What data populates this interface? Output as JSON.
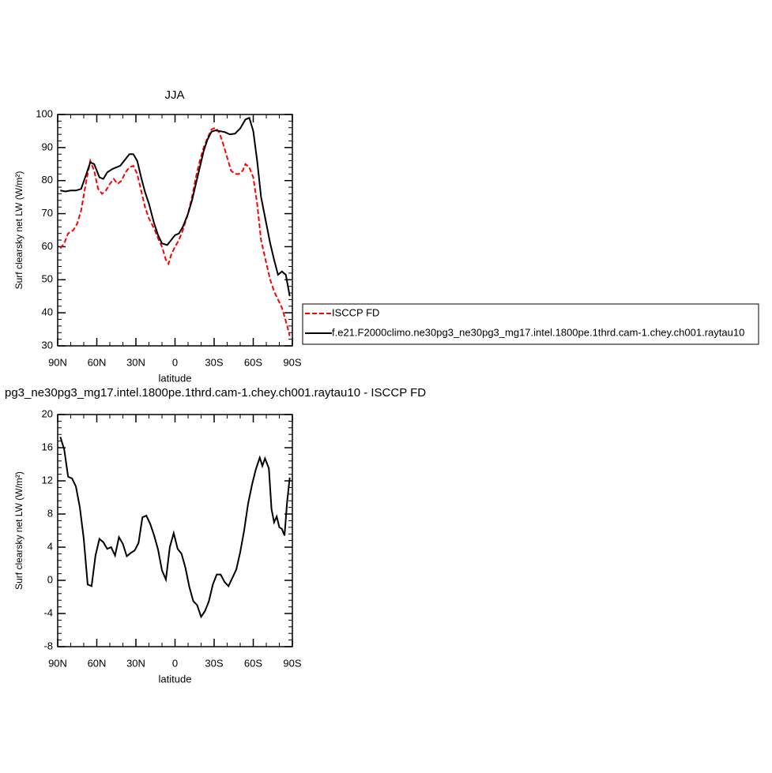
{
  "chart_data": [
    {
      "type": "line",
      "title": "JJA",
      "xlabel": "latitude",
      "ylabel": "Surf clearsky net LW (W/m²)",
      "xlim": [
        90,
        -90
      ],
      "xticks": [
        {
          "value": 90,
          "label": "90N"
        },
        {
          "value": 60,
          "label": "60N"
        },
        {
          "value": 30,
          "label": "30N"
        },
        0,
        {
          "value": -30,
          "label": "30S"
        },
        {
          "value": -60,
          "label": "60S"
        },
        {
          "value": -90,
          "label": "90S"
        }
      ],
      "ylim": [
        30,
        100
      ],
      "yticks": [
        30,
        40,
        50,
        60,
        70,
        80,
        90,
        100
      ],
      "legend": "right",
      "series": [
        {
          "name": "ISCCP FD",
          "color": "#ff0000",
          "style": "dashed",
          "x": [
            88,
            85,
            82,
            78,
            75,
            72,
            68,
            65,
            62,
            59,
            56,
            53,
            50,
            47,
            44,
            41,
            38,
            35,
            32,
            29,
            26,
            23,
            20,
            16,
            13,
            10,
            7,
            5,
            3,
            0,
            -3,
            -6,
            -10,
            -13,
            -16,
            -19,
            -22,
            -25,
            -28,
            -31,
            -34,
            -37,
            -40,
            -43,
            -46,
            -49,
            -52,
            -54,
            -57,
            -60,
            -63,
            -66,
            -70,
            -73,
            -76,
            -79,
            -82,
            -85,
            -88
          ],
          "values": [
            59.5,
            61,
            64,
            65,
            67,
            71,
            80,
            86,
            83,
            77.5,
            76,
            77,
            79,
            80.5,
            79,
            80,
            82.5,
            84,
            84.5,
            82,
            77,
            72,
            68.5,
            65.5,
            62.5,
            60,
            56,
            54.8,
            57.5,
            60,
            62,
            65,
            70,
            75,
            81,
            86,
            90,
            93,
            95.5,
            96,
            94.5,
            91,
            87,
            83,
            82,
            82,
            83,
            85,
            84,
            81,
            73,
            62,
            55,
            50,
            46.5,
            44,
            41.5,
            37.5,
            33
          ]
        },
        {
          "name": "f.e21.F2000climo.ne30pg3_ne30pg3_mg17.intel.1800pe.1thrd.cam-1.chey.ch001.raytau10",
          "color": "#000000",
          "style": "solid",
          "x": [
            88,
            84,
            80,
            76,
            72,
            68,
            65,
            62,
            58,
            55,
            52,
            48,
            45,
            42,
            38,
            35,
            32,
            29,
            26,
            23,
            20,
            16,
            13,
            10,
            6,
            3,
            0,
            -3,
            -6,
            -10,
            -13,
            -16,
            -19,
            -22,
            -25,
            -28,
            -31,
            -34,
            -38,
            -42,
            -46,
            -50,
            -54,
            -57,
            -60,
            -63,
            -66,
            -70,
            -73,
            -76,
            -79,
            -82,
            -85,
            -88
          ],
          "values": [
            77,
            76.7,
            77,
            77,
            77.5,
            82,
            85.5,
            85,
            81,
            80.5,
            82.5,
            83.5,
            84,
            84.5,
            86.5,
            88,
            88,
            86,
            81,
            76.5,
            73,
            67,
            63.5,
            61,
            60.5,
            62,
            63.5,
            64,
            66,
            70,
            74,
            79,
            84,
            89,
            92.5,
            94.8,
            95.2,
            95,
            94.7,
            94,
            94.2,
            95.8,
            98.5,
            99,
            95,
            86,
            75,
            67,
            61,
            56,
            51.5,
            52.5,
            51.5,
            45
          ]
        }
      ]
    },
    {
      "type": "line",
      "title": "pg3_ne30pg3_mg17.intel.1800pe.1thrd.cam-1.chey.ch001.raytau10 - ISCCP FD",
      "xlabel": "latitude",
      "ylabel": "Surf clearsky net LW (W/m²)",
      "xlim": [
        90,
        -90
      ],
      "xticks": [
        {
          "value": 90,
          "label": "90N"
        },
        {
          "value": 60,
          "label": "60N"
        },
        {
          "value": 30,
          "label": "30N"
        },
        0,
        {
          "value": -30,
          "label": "30S"
        },
        {
          "value": -60,
          "label": "60S"
        },
        {
          "value": -90,
          "label": "90S"
        }
      ],
      "ylim": [
        -8,
        20
      ],
      "yticks": [
        -8,
        -4,
        0,
        4,
        8,
        12,
        16,
        20
      ],
      "series": [
        {
          "color": "#000000",
          "style": "solid",
          "x": [
            88,
            85,
            82,
            79,
            76,
            73,
            70,
            67,
            64,
            61,
            58,
            55,
            52,
            49,
            46,
            43,
            40,
            37,
            34,
            31,
            28,
            25,
            22,
            19,
            16,
            13,
            10,
            7,
            4,
            1,
            -2,
            -5,
            -8,
            -11,
            -14,
            -17,
            -20,
            -23,
            -26,
            -29,
            -32,
            -35,
            -38,
            -41,
            -44,
            -47,
            -50,
            -53,
            -56,
            -59,
            -62,
            -65,
            -67,
            -69,
            -72,
            -74,
            -76,
            -78,
            -80,
            -82,
            -84,
            -86,
            -88
          ],
          "values": [
            17.3,
            15.8,
            12.5,
            12.3,
            11.3,
            8.8,
            5,
            -0.5,
            -0.7,
            3,
            5,
            4.6,
            3.8,
            4,
            3,
            5.2,
            4.4,
            2.9,
            3.3,
            3.6,
            4.5,
            7.6,
            7.8,
            6.8,
            5.4,
            3.7,
            1.2,
            0.1,
            4,
            5.7,
            3.8,
            3.2,
            1.5,
            -0.8,
            -2.5,
            -3,
            -4.4,
            -3.7,
            -2.5,
            -0.5,
            0.7,
            0.7,
            -0.2,
            -0.7,
            0.3,
            1.3,
            3.4,
            6,
            9.2,
            11.5,
            13.4,
            14.8,
            13.8,
            14.7,
            13.5,
            8.6,
            7,
            7.7,
            6.4,
            6.2,
            5.4,
            9.5,
            12.4
          ]
        }
      ]
    }
  ]
}
